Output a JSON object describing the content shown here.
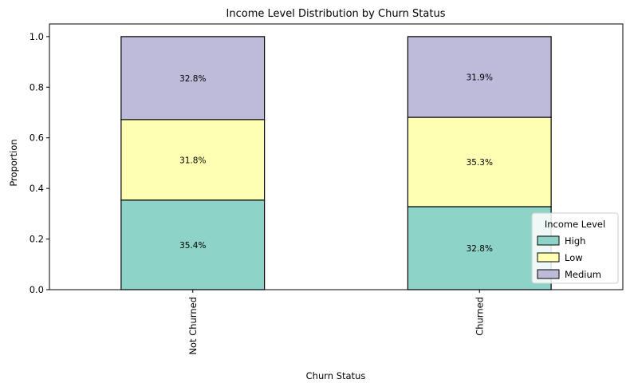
{
  "chart_data": {
    "type": "bar",
    "stacked": true,
    "title": "Income Level Distribution by Churn Status",
    "xlabel": "Churn Status",
    "ylabel": "Proportion",
    "categories": [
      "Not Churned",
      "Churned"
    ],
    "ylim": [
      0,
      1.05
    ],
    "yticks": [
      0.0,
      0.2,
      0.4,
      0.6,
      0.8,
      1.0
    ],
    "ytick_labels": [
      "0.0",
      "0.2",
      "0.4",
      "0.6",
      "0.8",
      "1.0"
    ],
    "series": [
      {
        "name": "High",
        "color": "#8dd3c7",
        "values": [
          0.354,
          0.328
        ],
        "labels": [
          "35.4%",
          "32.8%"
        ]
      },
      {
        "name": "Low",
        "color": "#ffffb3",
        "values": [
          0.318,
          0.353
        ],
        "labels": [
          "31.8%",
          "35.3%"
        ]
      },
      {
        "name": "Medium",
        "color": "#bebada",
        "values": [
          0.328,
          0.319
        ],
        "labels": [
          "32.8%",
          "31.9%"
        ]
      }
    ],
    "legend": {
      "title": "Income Level",
      "position": "lower-right"
    },
    "grid": false
  }
}
